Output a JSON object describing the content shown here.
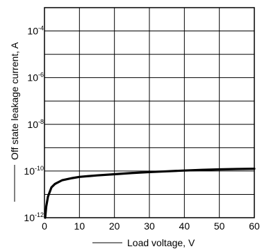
{
  "chart_data": {
    "type": "line",
    "xlabel": "Load voltage, V",
    "ylabel": "Off state leakage current, A",
    "x_ticks": [
      0,
      10,
      20,
      30,
      40,
      50,
      60
    ],
    "xlim": [
      0,
      60
    ],
    "y_log_scale": true,
    "ylim": [
      1e-12,
      0.001
    ],
    "y_ticks": [
      {
        "value": 0.0001,
        "base": "10",
        "exp": "-4"
      },
      {
        "value": 1e-06,
        "base": "10",
        "exp": "-6"
      },
      {
        "value": 1e-08,
        "base": "10",
        "exp": "-8"
      },
      {
        "value": 1e-10,
        "base": "10",
        "exp": "-10"
      },
      {
        "value": 1e-12,
        "base": "10",
        "exp": "-12"
      }
    ],
    "grid": true,
    "series": [
      {
        "color": "#000000",
        "points": [
          [
            0.2,
            1e-12
          ],
          [
            0.5,
            3e-12
          ],
          [
            1,
            8e-12
          ],
          [
            2,
            2e-11
          ],
          [
            3,
            2.8e-11
          ],
          [
            5,
            4e-11
          ],
          [
            8,
            5e-11
          ],
          [
            10,
            5.6e-11
          ],
          [
            15,
            6.5e-11
          ],
          [
            20,
            7.3e-11
          ],
          [
            25,
            8.2e-11
          ],
          [
            30,
            9e-11
          ],
          [
            35,
            9.7e-11
          ],
          [
            40,
            1.05e-10
          ],
          [
            45,
            1.12e-10
          ],
          [
            50,
            1.18e-10
          ],
          [
            55,
            1.22e-10
          ],
          [
            60,
            1.25e-10
          ]
        ]
      }
    ]
  }
}
